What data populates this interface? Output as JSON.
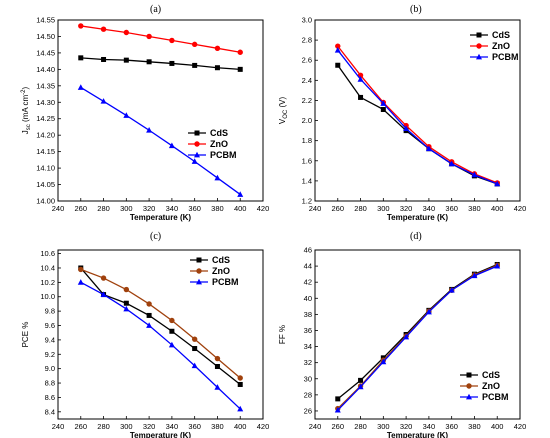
{
  "colors": {
    "CdS": "#000000",
    "ZnO": "#ff0000",
    "PCBM": "#0000ff",
    "ZnO_alt": "#a0410d"
  },
  "chart_data": [
    {
      "panel": "(a)",
      "type": "line",
      "xlabel": "Temperature (K)",
      "ylabel": {
        "main": "J",
        "sub": "sc",
        "rest": " (mA cm",
        "sup": "-2",
        "end": ")"
      },
      "xlim": [
        240,
        420
      ],
      "ylim": [
        14.0,
        14.55
      ],
      "xticks": [
        "240",
        "260",
        "280",
        "300",
        "320",
        "340",
        "360",
        "380",
        "400",
        "420"
      ],
      "yticks": [
        "14.00",
        "14.05",
        "14.10",
        "14.15",
        "14.20",
        "14.25",
        "14.30",
        "14.35",
        "14.40",
        "14.45",
        "14.50",
        "14.55"
      ],
      "x": [
        260,
        280,
        300,
        320,
        340,
        360,
        380,
        400
      ],
      "legend_position": "bottom-right",
      "series": [
        {
          "name": "CdS",
          "marker": "square",
          "color": "#000000",
          "values": [
            14.435,
            14.43,
            14.428,
            14.423,
            14.418,
            14.412,
            14.405,
            14.4
          ]
        },
        {
          "name": "ZnO",
          "marker": "circle",
          "color": "#ff0000",
          "values": [
            14.532,
            14.522,
            14.512,
            14.5,
            14.488,
            14.476,
            14.464,
            14.452
          ]
        },
        {
          "name": "PCBM",
          "marker": "triangle",
          "color": "#0000ff",
          "values": [
            14.345,
            14.303,
            14.26,
            14.215,
            14.168,
            14.12,
            14.07,
            14.02
          ]
        }
      ]
    },
    {
      "panel": "(b)",
      "type": "line",
      "xlabel": "Temperature (K)",
      "ylabel": {
        "main": "V",
        "sub": "OC",
        "rest": " (V)",
        "sup": "",
        "end": ""
      },
      "xlim": [
        240,
        420
      ],
      "ylim": [
        1.2,
        3.0
      ],
      "xticks": [
        "240",
        "260",
        "280",
        "300",
        "320",
        "340",
        "360",
        "380",
        "400",
        "420"
      ],
      "yticks": [
        "1.2",
        "1.4",
        "1.6",
        "1.8",
        "2.0",
        "2.2",
        "2.4",
        "2.6",
        "2.8",
        "3.0"
      ],
      "x": [
        260,
        280,
        300,
        320,
        340,
        360,
        380,
        400
      ],
      "legend_position": "top-right",
      "series": [
        {
          "name": "CdS",
          "marker": "square",
          "color": "#000000",
          "values": [
            2.55,
            2.23,
            2.11,
            1.9,
            1.72,
            1.57,
            1.45,
            1.37
          ]
        },
        {
          "name": "ZnO",
          "marker": "circle",
          "color": "#ff0000",
          "values": [
            2.74,
            2.45,
            2.18,
            1.95,
            1.74,
            1.59,
            1.47,
            1.38
          ]
        },
        {
          "name": "PCBM",
          "marker": "triangle",
          "color": "#0000ff",
          "values": [
            2.7,
            2.41,
            2.17,
            1.92,
            1.72,
            1.57,
            1.46,
            1.37
          ]
        }
      ]
    },
    {
      "panel": "(c)",
      "type": "line",
      "xlabel": "Temperature (K)",
      "ylabel": {
        "main": "PCE %",
        "sub": "",
        "rest": "",
        "sup": "",
        "end": ""
      },
      "xlim": [
        240,
        420
      ],
      "ylim": [
        8.3,
        10.65
      ],
      "xticks": [
        "240",
        "260",
        "280",
        "300",
        "320",
        "340",
        "360",
        "380",
        "400",
        "420"
      ],
      "yticks": [
        "8.4",
        "8.6",
        "8.8",
        "9.0",
        "9.2",
        "9.4",
        "9.6",
        "9.8",
        "10.0",
        "10.2",
        "10.4",
        "10.6"
      ],
      "x": [
        260,
        280,
        300,
        320,
        340,
        360,
        380,
        400
      ],
      "legend_position": "top-right",
      "series": [
        {
          "name": "CdS",
          "marker": "square",
          "color": "#000000",
          "values": [
            10.4,
            10.03,
            9.91,
            9.74,
            9.52,
            9.28,
            9.03,
            8.78
          ]
        },
        {
          "name": "ZnO",
          "marker": "circle",
          "color": "#a0410d",
          "values": [
            10.38,
            10.26,
            10.1,
            9.9,
            9.67,
            9.41,
            9.14,
            8.87
          ]
        },
        {
          "name": "PCBM",
          "marker": "triangle",
          "color": "#0000ff",
          "values": [
            10.2,
            10.03,
            9.83,
            9.6,
            9.33,
            9.04,
            8.74,
            8.44
          ]
        }
      ]
    },
    {
      "panel": "(d)",
      "type": "line",
      "xlabel": "Temperature (K)",
      "ylabel": {
        "main": "FF %",
        "sub": "",
        "rest": "",
        "sup": "",
        "end": ""
      },
      "xlim": [
        240,
        420
      ],
      "ylim": [
        25,
        46
      ],
      "xticks": [
        "240",
        "260",
        "280",
        "300",
        "320",
        "340",
        "360",
        "380",
        "400",
        "420"
      ],
      "yticks": [
        "26",
        "28",
        "30",
        "32",
        "34",
        "36",
        "38",
        "40",
        "42",
        "44",
        "46"
      ],
      "x": [
        260,
        280,
        300,
        320,
        340,
        360,
        380,
        400
      ],
      "legend_position": "bottom-right",
      "series": [
        {
          "name": "CdS",
          "marker": "square",
          "color": "#000000",
          "values": [
            27.5,
            29.8,
            32.6,
            35.5,
            38.5,
            41.1,
            43.0,
            44.2
          ]
        },
        {
          "name": "ZnO",
          "marker": "circle",
          "color": "#a0410d",
          "values": [
            26.3,
            29.1,
            32.3,
            35.3,
            38.4,
            41.0,
            42.9,
            44.1
          ]
        },
        {
          "name": "PCBM",
          "marker": "triangle",
          "color": "#0000ff",
          "values": [
            26.1,
            29.0,
            32.1,
            35.2,
            38.3,
            41.0,
            42.8,
            44.0
          ]
        }
      ]
    }
  ]
}
